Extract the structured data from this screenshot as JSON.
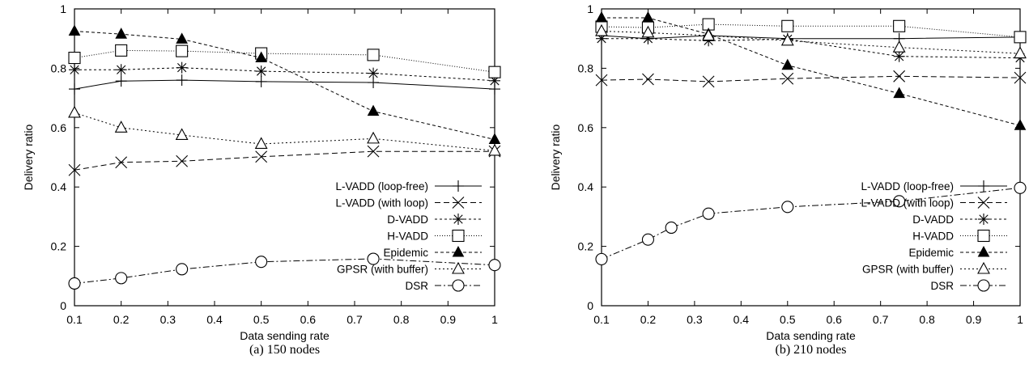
{
  "chart_data": [
    {
      "type": "line",
      "caption": "(a)  150 nodes",
      "xlabel": "Data sending rate",
      "ylabel": "Delivery ratio",
      "xlim": [
        0.1,
        1
      ],
      "ylim": [
        0,
        1
      ],
      "xticks": [
        "0.1",
        "0.2",
        "0.3",
        "0.4",
        "0.5",
        "0.6",
        "0.7",
        "0.8",
        "0.9",
        "1"
      ],
      "yticks": [
        "0",
        "0.2",
        "0.4",
        "0.6",
        "0.8",
        "1"
      ],
      "legend_position": "bottom-right",
      "series": [
        {
          "name": "L-VADD (loop-free)",
          "marker": "plus",
          "dash": "",
          "x": [
            0.1,
            0.2,
            0.33,
            0.5,
            0.74,
            1.0
          ],
          "y": [
            0.73,
            0.757,
            0.76,
            0.755,
            0.752,
            0.73
          ]
        },
        {
          "name": "L-VADD (with loop)",
          "marker": "x",
          "dash": "7,4",
          "x": [
            0.1,
            0.2,
            0.33,
            0.5,
            0.74,
            1.0
          ],
          "y": [
            0.457,
            0.483,
            0.487,
            0.502,
            0.52,
            0.52
          ]
        },
        {
          "name": "D-VADD",
          "marker": "star",
          "dash": "3,3",
          "x": [
            0.1,
            0.2,
            0.33,
            0.5,
            0.74,
            1.0
          ],
          "y": [
            0.795,
            0.795,
            0.802,
            0.79,
            0.783,
            0.758
          ]
        },
        {
          "name": "H-VADD",
          "marker": "square",
          "dash": "1,2",
          "x": [
            0.1,
            0.2,
            0.33,
            0.5,
            0.74,
            1.0
          ],
          "y": [
            0.835,
            0.86,
            0.858,
            0.85,
            0.845,
            0.787
          ]
        },
        {
          "name": "Epidemic",
          "marker": "filled-triangle",
          "dash": "4,3",
          "x": [
            0.1,
            0.2,
            0.33,
            0.5,
            0.74,
            1.0
          ],
          "y": [
            0.925,
            0.915,
            0.898,
            0.835,
            0.655,
            0.56
          ]
        },
        {
          "name": "GPSR (with buffer)",
          "marker": "triangle",
          "dash": "2,3",
          "x": [
            0.1,
            0.2,
            0.33,
            0.5,
            0.74,
            1.0
          ],
          "y": [
            0.65,
            0.6,
            0.575,
            0.545,
            0.563,
            0.522
          ]
        },
        {
          "name": "DSR",
          "marker": "circle",
          "dash": "8,3,2,3",
          "x": [
            0.1,
            0.2,
            0.33,
            0.5,
            0.74,
            1.0
          ],
          "y": [
            0.075,
            0.093,
            0.123,
            0.148,
            0.158,
            0.137
          ]
        }
      ]
    },
    {
      "type": "line",
      "caption": "(b)  210 nodes",
      "xlabel": "Data sending rate",
      "ylabel": "Delivery ratio",
      "xlim": [
        0.1,
        1
      ],
      "ylim": [
        0,
        1
      ],
      "xticks": [
        "0.1",
        "0.2",
        "0.3",
        "0.4",
        "0.5",
        "0.6",
        "0.7",
        "0.8",
        "0.9",
        "1"
      ],
      "yticks": [
        "0",
        "0.2",
        "0.4",
        "0.6",
        "0.8",
        "1"
      ],
      "legend_position": "bottom-right",
      "series": [
        {
          "name": "L-VADD (loop-free)",
          "marker": "plus",
          "dash": "",
          "x": [
            0.1,
            0.2,
            0.33,
            0.5,
            0.74,
            1.0
          ],
          "y": [
            0.91,
            0.9,
            0.91,
            0.9,
            0.9,
            0.905
          ]
        },
        {
          "name": "L-VADD (with loop)",
          "marker": "x",
          "dash": "7,4",
          "x": [
            0.1,
            0.2,
            0.33,
            0.5,
            0.74,
            1.0
          ],
          "y": [
            0.76,
            0.763,
            0.755,
            0.765,
            0.773,
            0.768
          ]
        },
        {
          "name": "D-VADD",
          "marker": "star",
          "dash": "3,3",
          "x": [
            0.1,
            0.2,
            0.33,
            0.5,
            0.74,
            1.0
          ],
          "y": [
            0.9,
            0.9,
            0.893,
            0.898,
            0.84,
            0.835
          ]
        },
        {
          "name": "H-VADD",
          "marker": "square",
          "dash": "1,2",
          "x": [
            0.1,
            0.2,
            0.33,
            0.5,
            0.74,
            1.0
          ],
          "y": [
            0.94,
            0.937,
            0.948,
            0.942,
            0.942,
            0.905
          ]
        },
        {
          "name": "Epidemic",
          "marker": "filled-triangle",
          "dash": "4,3",
          "x": [
            0.1,
            0.2,
            0.33,
            0.5,
            0.74,
            1.0
          ],
          "y": [
            0.97,
            0.97,
            0.915,
            0.81,
            0.715,
            0.607
          ]
        },
        {
          "name": "GPSR (with buffer)",
          "marker": "triangle",
          "dash": "2,3",
          "x": [
            0.1,
            0.2,
            0.33,
            0.5,
            0.74,
            1.0
          ],
          "y": [
            0.925,
            0.92,
            0.91,
            0.893,
            0.87,
            0.85
          ]
        },
        {
          "name": "DSR",
          "marker": "circle",
          "dash": "8,3,2,3",
          "x": [
            0.1,
            0.2,
            0.25,
            0.33,
            0.5,
            0.74,
            1.0
          ],
          "y": [
            0.157,
            0.223,
            0.263,
            0.31,
            0.333,
            0.352,
            0.397
          ]
        }
      ]
    }
  ]
}
